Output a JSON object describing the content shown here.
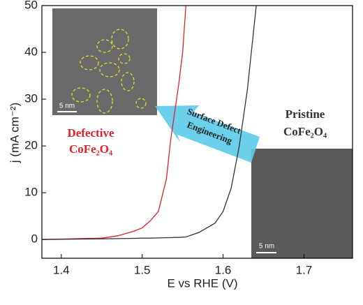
{
  "chart_data": {
    "type": "line",
    "xlabel": "E vs RHE (V)",
    "ylabel": "j (mA cm⁻²)",
    "x": [
      1.376,
      1.4,
      1.45,
      1.47,
      1.49,
      1.5,
      1.51,
      1.52,
      1.53,
      1.535,
      1.54,
      1.545,
      1.55,
      1.554,
      1.57,
      1.59,
      1.6,
      1.61,
      1.62,
      1.63,
      1.641
    ],
    "series": [
      {
        "name": "Defective CoFe₂O₄",
        "color": "#e0202a",
        "values": [
          0.05,
          0.1,
          0.3,
          0.8,
          1.8,
          2.5,
          4,
          6,
          13,
          21,
          27,
          33,
          40,
          50,
          null,
          null,
          null,
          null,
          null,
          null,
          null
        ]
      },
      {
        "name": "Pristine CoFe₂O₄",
        "color": "#333333",
        "values": [
          0,
          0.05,
          0.15,
          0.2,
          0.25,
          0.3,
          0.3,
          0.35,
          0.4,
          0.4,
          0.45,
          0.45,
          0.5,
          0.55,
          1.5,
          3.5,
          6,
          11,
          20,
          32,
          50
        ]
      }
    ],
    "xlim": [
      1.376,
      1.76
    ],
    "xticks": [
      1.4,
      1.5,
      1.6,
      1.7
    ],
    "ylim": [
      -4,
      50
    ],
    "yticks": [
      0,
      10,
      20,
      30,
      40,
      50
    ],
    "annotations": [
      "Defective",
      "CoFe₂O₄",
      "Pristine",
      "CoFe₂O₄",
      "Surface Defect",
      "Engineering",
      "5 nm",
      "5 nm"
    ]
  }
}
